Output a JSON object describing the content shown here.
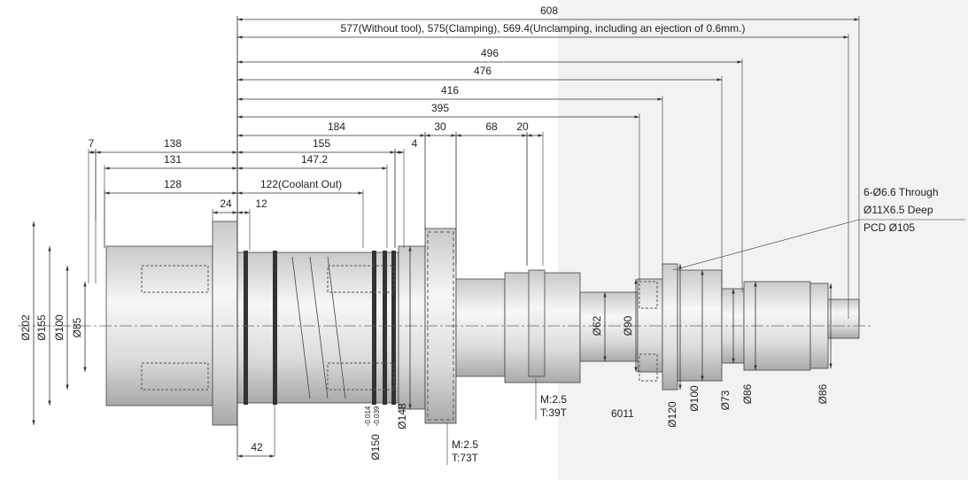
{
  "dimensions": [
    "608",
    "577(Without tool), 575(Clamping), 569.4(Unclamping, including an ejection of 0.6mm.)",
    "496",
    "476",
    "416",
    "395",
    "184",
    "30",
    "68",
    "20",
    "7",
    "138",
    "155",
    "4",
    "131",
    "147.2",
    "128",
    "122(Coolant Out)",
    "24",
    "12",
    "42"
  ],
  "diameters": [
    "Ø202",
    "Ø155",
    "Ø100",
    "Ø85",
    "Ø62",
    "Ø90",
    "Ø148",
    "Ø120",
    "Ø100",
    "Ø73",
    "Ø86",
    "Ø86"
  ],
  "tolerance_diameter": {
    "label": "Ø150",
    "upper": "-0.014",
    "lower": "-0.039"
  },
  "callout": [
    "6-Ø6.6 Through",
    "Ø11X6.5 Deep",
    "PCD Ø105"
  ],
  "gears": [
    {
      "module": "M:2.5",
      "teeth": "T:39T"
    },
    {
      "module": "M:2.5",
      "teeth": "T:73T"
    }
  ],
  "bearing": "6011"
}
